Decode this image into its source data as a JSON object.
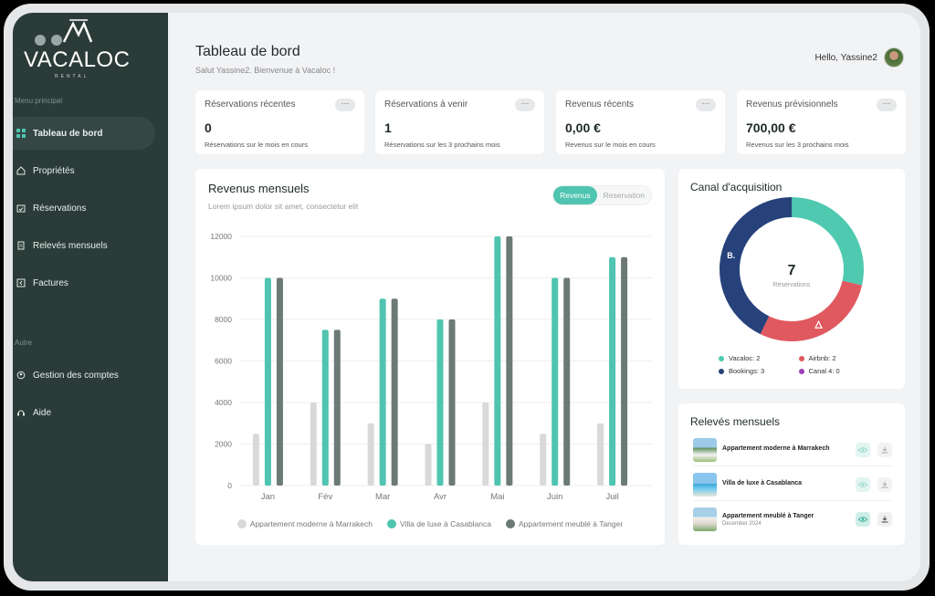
{
  "brand": {
    "name": "VACALOC",
    "sub": "RENTAL"
  },
  "sidebar": {
    "section_main": "Menu principal",
    "section_other": "Autre",
    "items": [
      {
        "label": "Tableau de bord",
        "icon": "dashboard-icon",
        "active": true
      },
      {
        "label": "Propriétés",
        "icon": "home-icon"
      },
      {
        "label": "Réservations",
        "icon": "calendar-check-icon"
      },
      {
        "label": "Relevés mensuels",
        "icon": "document-icon"
      },
      {
        "label": "Factures",
        "icon": "invoice-icon"
      }
    ],
    "other_items": [
      {
        "label": "Gestion des comptes",
        "icon": "user-settings-icon"
      },
      {
        "label": "Aide",
        "icon": "help-icon"
      }
    ]
  },
  "header": {
    "title": "Tableau de bord",
    "subtitle": "Salut Yassine2. Bienvenue à Vacaloc !",
    "greeting": "Hello, Yassine2"
  },
  "stats": [
    {
      "title": "Réservations récentes",
      "value": "0",
      "desc": "Réservations sur le mois en cours",
      "more": "···"
    },
    {
      "title": "Réservations à venir",
      "value": "1",
      "desc": "Réservations sur les 3 prochains mois",
      "more": "···"
    },
    {
      "title": "Revenus récents",
      "value": "0,00 €",
      "desc": "Revenus sur le mois en cours",
      "more": "···"
    },
    {
      "title": "Revenus prévisionnels",
      "value": "700,00 €",
      "desc": "Revenus sur les 3 prochains mois",
      "more": "···"
    }
  ],
  "revenue_chart": {
    "title": "Revenus mensuels",
    "subtitle": "Lorem ipsum dolor sit amet, consectetur elit",
    "toggle": {
      "on": "Revenus",
      "off": "Reservation"
    }
  },
  "chart_data": {
    "type": "bar",
    "categories": [
      "Jan",
      "Fév",
      "Mar",
      "Avr",
      "Mai",
      "Juin",
      "Juil"
    ],
    "series": [
      {
        "name": "Appartement moderne à Marrakech",
        "color": "#d9d9d9",
        "values": [
          2500,
          4000,
          3000,
          2000,
          4000,
          2500,
          3000
        ]
      },
      {
        "name": "Villa de luxe à Casablanca",
        "color": "#4fc4b0",
        "values": [
          10000,
          7500,
          9000,
          8000,
          12000,
          10000,
          11000
        ]
      },
      {
        "name": "Appartement meublé à Tanger",
        "color": "#6b7a76",
        "values": [
          10000,
          7500,
          9000,
          8000,
          12000,
          10000,
          11000
        ]
      }
    ],
    "yticks": [
      "0",
      "2000",
      "4000",
      "6000",
      "8000",
      "10000",
      "12000"
    ],
    "ylim": [
      0,
      12000
    ],
    "grid": true,
    "legend": "bottom"
  },
  "acquisition": {
    "title": "Canal d'acquisition",
    "total": "7",
    "total_label": "Réservations",
    "segments": [
      {
        "label": "Vacaloc: 2",
        "value": 2,
        "color": "#4fc9b0"
      },
      {
        "label": "Airbnb: 2",
        "value": 2,
        "color": "#e0595f"
      },
      {
        "label": "Bookings: 3",
        "value": 3,
        "color": "#27427a",
        "mark": "B."
      },
      {
        "label": "Canal 4: 0",
        "value": 0,
        "color": "#9b3fb5"
      }
    ]
  },
  "releves": {
    "title": "Relevés mensuels",
    "rows": [
      {
        "name": "Appartement moderne à Marrakech",
        "date": ""
      },
      {
        "name": "Villa de luxe à Casablanca",
        "date": ""
      },
      {
        "name": "Appartement meublé à Tanger",
        "date": "December 2024"
      }
    ]
  }
}
